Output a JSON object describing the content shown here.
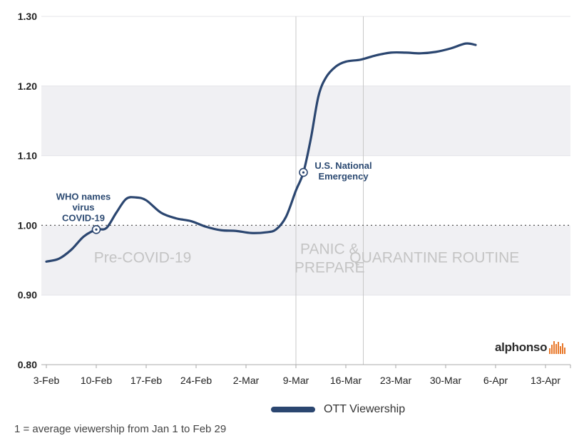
{
  "chart_data": {
    "type": "line",
    "title": "",
    "xlabel": "",
    "ylabel": "",
    "ylim": [
      0.8,
      1.3
    ],
    "yticks": [
      "0.80",
      "0.90",
      "1.00",
      "1.10",
      "1.20",
      "1.30"
    ],
    "reference_line": 1.0,
    "x": [
      "3-Feb",
      "10-Feb",
      "17-Feb",
      "24-Feb",
      "2-Mar",
      "9-Mar",
      "16-Mar",
      "23-Mar",
      "30-Mar",
      "6-Apr",
      "13-Apr"
    ],
    "series": [
      {
        "name": "OTT Viewership",
        "color": "#2b4670",
        "points": [
          [
            0,
            0.948
          ],
          [
            0.25,
            0.952
          ],
          [
            0.5,
            0.965
          ],
          [
            0.75,
            0.984
          ],
          [
            1.0,
            0.994
          ],
          [
            1.2,
            0.996
          ],
          [
            1.4,
            1.018
          ],
          [
            1.6,
            1.038
          ],
          [
            1.8,
            1.04
          ],
          [
            2.0,
            1.036
          ],
          [
            2.3,
            1.018
          ],
          [
            2.6,
            1.01
          ],
          [
            2.9,
            1.006
          ],
          [
            3.2,
            0.998
          ],
          [
            3.5,
            0.993
          ],
          [
            3.8,
            0.992
          ],
          [
            4.1,
            0.989
          ],
          [
            4.4,
            0.99
          ],
          [
            4.6,
            0.994
          ],
          [
            4.8,
            1.012
          ],
          [
            5.0,
            1.05
          ],
          [
            5.15,
            1.076
          ],
          [
            5.3,
            1.125
          ],
          [
            5.45,
            1.185
          ],
          [
            5.6,
            1.212
          ],
          [
            5.8,
            1.228
          ],
          [
            6.0,
            1.235
          ],
          [
            6.3,
            1.238
          ],
          [
            6.6,
            1.244
          ],
          [
            6.9,
            1.248
          ],
          [
            7.2,
            1.248
          ],
          [
            7.5,
            1.247
          ],
          [
            7.8,
            1.249
          ],
          [
            8.1,
            1.254
          ],
          [
            8.4,
            1.261
          ],
          [
            8.6,
            1.259
          ]
        ]
      }
    ],
    "phases": [
      {
        "label": "Pre-COVID-19",
        "from": -0.2,
        "to": 5.0
      },
      {
        "label1": "PANIC &",
        "label2": "PREPARE",
        "from": 5.0,
        "to": 6.35
      },
      {
        "label": "QUARANTINE ROUTINE",
        "from": 6.35,
        "to": 9.2
      }
    ],
    "bands": [
      {
        "from": 0.9,
        "to": 1.0,
        "color": "#f0f0f3"
      },
      {
        "from": 1.1,
        "to": 1.2,
        "color": "#f0f0f3"
      }
    ],
    "annotations": [
      {
        "line1": "WHO names",
        "line2": "virus",
        "line3": "COVID-19",
        "x": 1.0,
        "y": 0.994
      },
      {
        "line1": "U.S. National",
        "line2": "Emergency",
        "x": 5.15,
        "y": 1.076
      }
    ],
    "legend": {
      "position": "bottom-center"
    }
  },
  "footnote": "1 = average viewership from Jan 1 to Feb 29",
  "logo": {
    "text": "alphonso",
    "color": "#e8792c"
  }
}
